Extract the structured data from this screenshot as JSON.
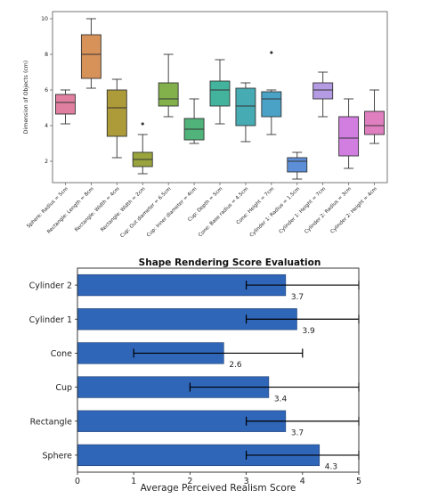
{
  "chart_data": [
    {
      "type": "box",
      "title": "",
      "xlabel": "",
      "ylabel": "Dimension of Objects (cm)",
      "ylim": [
        0.8,
        10.4
      ],
      "yticks": [
        2,
        4,
        6,
        8,
        10
      ],
      "categories": [
        "Sphere: Radius = 5cm",
        "Rectangle: Length = 8cm",
        "Rectangle: Width = 4cm",
        "Rectangle: Width = 2cm",
        "Cup: Out diameter = 6.5cm",
        "Cup: Inner diameter = 4cm",
        "Cup: Depth = 5cm",
        "Cone: Base radius = 4.5cm",
        "Cone: Height = 7cm",
        "Cylinder 1: Radius = 1.5cm",
        "Cylinder 1: Height = 7cm",
        "Cylinder 2: Radius = 3cm",
        "Cylinder 2: Height = 4cm"
      ],
      "boxes": [
        {
          "whislo": 4.1,
          "q1": 4.65,
          "med": 5.3,
          "q3": 5.75,
          "whishi": 6.0,
          "fliers": [],
          "color": "#e07fa0"
        },
        {
          "whislo": 6.1,
          "q1": 6.65,
          "med": 8.0,
          "q3": 9.1,
          "whishi": 10.0,
          "fliers": [],
          "color": "#d7925a"
        },
        {
          "whislo": 2.2,
          "q1": 3.4,
          "med": 5.0,
          "q3": 6.0,
          "whishi": 6.6,
          "fliers": [],
          "color": "#ad9a38"
        },
        {
          "whislo": 1.3,
          "q1": 1.7,
          "med": 2.1,
          "q3": 2.5,
          "whishi": 3.5,
          "fliers": [
            4.1
          ],
          "color": "#9aa43c"
        },
        {
          "whislo": 4.5,
          "q1": 5.1,
          "med": 5.5,
          "q3": 6.4,
          "whishi": 8.0,
          "fliers": [],
          "color": "#82b14b"
        },
        {
          "whislo": 3.0,
          "q1": 3.2,
          "med": 3.8,
          "q3": 4.4,
          "whishi": 5.5,
          "fliers": [],
          "color": "#4fb37a"
        },
        {
          "whislo": 4.1,
          "q1": 5.1,
          "med": 6.0,
          "q3": 6.5,
          "whishi": 7.7,
          "fliers": [],
          "color": "#43b39d"
        },
        {
          "whislo": 3.1,
          "q1": 4.0,
          "med": 5.1,
          "q3": 6.1,
          "whishi": 6.4,
          "fliers": [],
          "color": "#47abb3"
        },
        {
          "whislo": 3.5,
          "q1": 4.5,
          "med": 5.5,
          "q3": 5.9,
          "whishi": 6.0,
          "fliers": [
            8.1
          ],
          "color": "#4aa3c7"
        },
        {
          "whislo": 1.0,
          "q1": 1.4,
          "med": 2.0,
          "q3": 2.2,
          "whishi": 2.5,
          "fliers": [],
          "color": "#5d8fd8"
        },
        {
          "whislo": 4.5,
          "q1": 5.5,
          "med": 6.0,
          "q3": 6.4,
          "whishi": 7.0,
          "fliers": [],
          "color": "#b49be3"
        },
        {
          "whislo": 1.6,
          "q1": 2.3,
          "med": 3.3,
          "q3": 4.5,
          "whishi": 5.5,
          "fliers": [],
          "color": "#d17ee0"
        },
        {
          "whislo": 3.0,
          "q1": 3.5,
          "med": 4.0,
          "q3": 4.8,
          "whishi": 6.0,
          "fliers": [],
          "color": "#e07fbf"
        }
      ],
      "grid": false,
      "legend": "none"
    },
    {
      "type": "bar",
      "orientation": "horizontal",
      "title": "Shape Rendering Score Evaluation",
      "xlabel": "Average Perceived Realism Score",
      "ylabel": "",
      "xlim": [
        0,
        5
      ],
      "xticks": [
        0,
        1,
        2,
        3,
        4,
        5
      ],
      "categories": [
        "Cylinder 2",
        "Cylinder 1",
        "Cone",
        "Cup",
        "Rectangle",
        "Sphere"
      ],
      "values": [
        3.7,
        3.9,
        2.6,
        3.4,
        3.7,
        4.3
      ],
      "value_labels": [
        "3.7",
        "3.9",
        "2.6",
        "3.4",
        "3.7",
        "4.3"
      ],
      "error_ranges": [
        [
          3.0,
          5.0
        ],
        [
          3.0,
          5.0
        ],
        [
          1.0,
          4.0
        ],
        [
          2.0,
          5.0
        ],
        [
          3.0,
          5.0
        ],
        [
          3.0,
          5.0
        ]
      ],
      "bar_color": "#2f66b8",
      "grid": false,
      "legend": "none"
    }
  ]
}
